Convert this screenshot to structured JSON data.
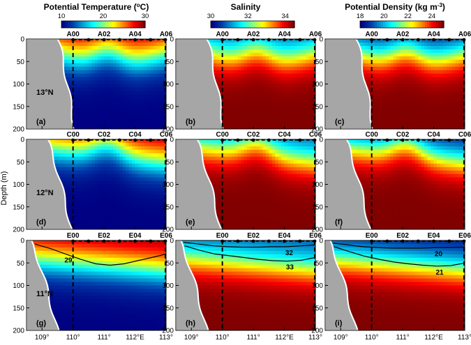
{
  "chart_data": {
    "type": "heatmap",
    "ylabel": "Depth (m)",
    "depth_range": [
      0,
      200
    ],
    "depth_ticks": [
      "0",
      "50",
      "100",
      "150",
      "200"
    ],
    "lon_range": [
      108.5,
      113.0
    ],
    "lon_ticks": [
      "109°",
      "110°",
      "111°",
      "112°E",
      "113°"
    ],
    "lon_tick_values": [
      109,
      110,
      111,
      112,
      113
    ],
    "columns": [
      {
        "title": "Potential Temperature (",
        "title_sup": "o",
        "title_tail": "C)",
        "variable": "temperature",
        "cbar_ticks": [
          "10",
          "20",
          "30"
        ],
        "cbar_values": [
          10,
          20,
          30
        ],
        "range": [
          10,
          30
        ]
      },
      {
        "title": "Salinity",
        "title_sup": "",
        "title_tail": "",
        "variable": "salinity",
        "cbar_ticks": [
          "30",
          "32",
          "34"
        ],
        "cbar_values": [
          30,
          32,
          34
        ],
        "range": [
          30,
          34.5
        ]
      },
      {
        "title": "Potential Density (kg m",
        "title_sup": "-3",
        "title_tail": ")",
        "variable": "density",
        "cbar_ticks": [
          "18",
          "20",
          "22",
          "24"
        ],
        "cbar_values": [
          18,
          20,
          22,
          24
        ],
        "range": [
          18,
          25
        ]
      }
    ],
    "rows": [
      {
        "latitude": "13°N",
        "stations": [
          "A00",
          "A02",
          "A04",
          "A06"
        ],
        "station_lons": [
          110,
          111,
          112,
          113
        ],
        "panels": [
          "(a)",
          "(b)",
          "(c)"
        ],
        "contours": []
      },
      {
        "latitude": "12°N",
        "stations": [
          "C00",
          "C02",
          "C04",
          "C06"
        ],
        "station_lons": [
          110,
          111,
          112,
          113
        ],
        "panels": [
          "(d)",
          "(e)",
          "(f)"
        ],
        "contours": []
      },
      {
        "latitude": "11°N",
        "stations": [
          "E00",
          "E02",
          "E04",
          "E06"
        ],
        "station_lons": [
          110,
          111,
          112,
          113
        ],
        "panels": [
          "(g)",
          "(h)",
          "(i)"
        ],
        "contours": [
          {
            "col": 0,
            "label": "29",
            "depths": [
              8,
              18,
              30,
              42,
              52,
              55,
              52,
              45,
              38,
              30
            ]
          },
          {
            "col": 1,
            "label": "32",
            "depths": [
              4,
              8,
              12,
              14,
              15,
              15,
              14,
              14,
              12,
              10
            ]
          },
          {
            "col": 1,
            "label": "33",
            "depths": [
              12,
              22,
              30,
              34,
              38,
              42,
              45,
              46,
              44,
              38
            ]
          },
          {
            "col": 2,
            "label": "20",
            "depths": [
              6,
              10,
              14,
              16,
              17,
              17,
              17,
              16,
              16,
              15
            ]
          },
          {
            "col": 2,
            "label": "21",
            "depths": [
              14,
              25,
              35,
              42,
              48,
              52,
              55,
              57,
              56,
              50
            ]
          }
        ]
      }
    ]
  }
}
